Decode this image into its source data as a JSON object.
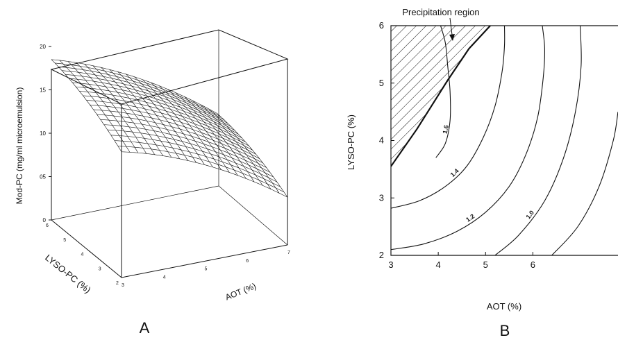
{
  "chart_data": [
    {
      "type": "surface",
      "panel_label": "A",
      "xlabel": "AOT (%)",
      "ylabel": "LYSO-PC (%)",
      "zlabel": "Mod-PC (mg/ml microemulsion)",
      "x_ticks": [
        "3",
        "4",
        "5",
        "6",
        "7"
      ],
      "y_ticks": [
        "2",
        "3",
        "4",
        "5",
        "6"
      ],
      "z_ticks": [
        "0",
        "05",
        "10",
        "15",
        "20"
      ],
      "xlim": [
        3,
        7
      ],
      "ylim": [
        2,
        6
      ],
      "zlim": [
        0,
        2.0
      ],
      "corners": [
        {
          "aot": 3,
          "lyso": 2,
          "mod_pc": 1.45
        },
        {
          "aot": 3,
          "lyso": 6,
          "mod_pc": 1.85
        },
        {
          "aot": 7,
          "lyso": 2,
          "mod_pc": 0.55
        },
        {
          "aot": 7,
          "lyso": 6,
          "mod_pc": 0.85
        }
      ]
    },
    {
      "type": "contour",
      "panel_label": "B",
      "xlabel": "AOT (%)",
      "ylabel": "LYSO-PC (%)",
      "x_ticks": [
        "3",
        "4",
        "5",
        "6"
      ],
      "y_ticks": [
        "2",
        "3",
        "4",
        "5",
        "6"
      ],
      "xlim": [
        3,
        7.8
      ],
      "ylim": [
        2,
        6
      ],
      "annotation": "Precipitation region",
      "precipitation_boundary": [
        [
          3,
          3.55
        ],
        [
          3.55,
          4.2
        ],
        [
          4.2,
          5.05
        ],
        [
          4.65,
          5.6
        ],
        [
          5.1,
          6
        ]
      ],
      "contours": [
        {
          "level": "1.6",
          "points": [
            [
              3.95,
              3.7
            ],
            [
              4.15,
              3.95
            ],
            [
              4.25,
              4.35
            ],
            [
              4.25,
              4.85
            ],
            [
              4.2,
              5.3
            ],
            [
              4.15,
              5.7
            ],
            [
              4.05,
              6
            ]
          ]
        },
        {
          "level": "1.4",
          "points": [
            [
              3,
              2.82
            ],
            [
              3.6,
              2.95
            ],
            [
              4.15,
              3.2
            ],
            [
              4.6,
              3.55
            ],
            [
              4.95,
              4.05
            ],
            [
              5.2,
              4.6
            ],
            [
              5.35,
              5.2
            ],
            [
              5.4,
              5.65
            ],
            [
              5.4,
              6
            ]
          ]
        },
        {
          "level": "1.2",
          "points": [
            [
              3,
              2.1
            ],
            [
              3.7,
              2.2
            ],
            [
              4.4,
              2.42
            ],
            [
              5.0,
              2.75
            ],
            [
              5.5,
              3.2
            ],
            [
              5.85,
              3.75
            ],
            [
              6.1,
              4.4
            ],
            [
              6.22,
              5.1
            ],
            [
              6.25,
              5.6
            ],
            [
              6.2,
              6
            ]
          ]
        },
        {
          "level": "1.0",
          "points": [
            [
              5.2,
              2
            ],
            [
              5.7,
              2.35
            ],
            [
              6.25,
              2.95
            ],
            [
              6.65,
              3.7
            ],
            [
              6.9,
              4.5
            ],
            [
              7.02,
              5.3
            ],
            [
              7.0,
              6
            ]
          ]
        },
        {
          "level": "",
          "points": [
            [
              6.4,
              2
            ],
            [
              6.95,
              2.5
            ],
            [
              7.4,
              3.2
            ],
            [
              7.7,
              4.0
            ],
            [
              7.8,
              4.5
            ]
          ]
        }
      ]
    }
  ]
}
